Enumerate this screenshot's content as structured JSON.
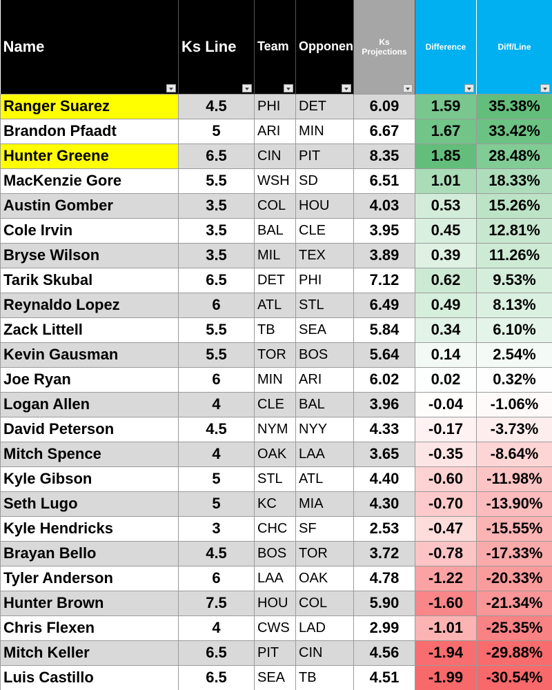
{
  "table": {
    "headers": [
      "Name",
      "Ks Line",
      "Team",
      "Opponent",
      "Ks Projections",
      "Difference",
      "Diff/Line"
    ],
    "rows": [
      [
        "Ranger Suarez",
        "4.5",
        "PHI",
        "DET",
        "6.09",
        "1.59",
        "35.38%"
      ],
      [
        "Brandon Pfaadt",
        "5",
        "ARI",
        "MIN",
        "6.67",
        "1.67",
        "33.42%"
      ],
      [
        "Hunter Greene",
        "6.5",
        "CIN",
        "PIT",
        "8.35",
        "1.85",
        "28.48%"
      ],
      [
        "MacKenzie Gore",
        "5.5",
        "WSH",
        "SD",
        "6.51",
        "1.01",
        "18.33%"
      ],
      [
        "Austin Gomber",
        "3.5",
        "COL",
        "HOU",
        "4.03",
        "0.53",
        "15.26%"
      ],
      [
        "Cole Irvin",
        "3.5",
        "BAL",
        "CLE",
        "3.95",
        "0.45",
        "12.81%"
      ],
      [
        "Bryse Wilson",
        "3.5",
        "MIL",
        "TEX",
        "3.89",
        "0.39",
        "11.26%"
      ],
      [
        "Tarik Skubal",
        "6.5",
        "DET",
        "PHI",
        "7.12",
        "0.62",
        "9.53%"
      ],
      [
        "Reynaldo Lopez",
        "6",
        "ATL",
        "STL",
        "6.49",
        "0.49",
        "8.13%"
      ],
      [
        "Zack Littell",
        "5.5",
        "TB",
        "SEA",
        "5.84",
        "0.34",
        "6.10%"
      ],
      [
        "Kevin Gausman",
        "5.5",
        "TOR",
        "BOS",
        "5.64",
        "0.14",
        "2.54%"
      ],
      [
        "Joe Ryan",
        "6",
        "MIN",
        "ARI",
        "6.02",
        "0.02",
        "0.32%"
      ],
      [
        "Logan Allen",
        "4",
        "CLE",
        "BAL",
        "3.96",
        "-0.04",
        "-1.06%"
      ],
      [
        "David Peterson",
        "4.5",
        "NYM",
        "NYY",
        "4.33",
        "-0.17",
        "-3.73%"
      ],
      [
        "Mitch Spence",
        "4",
        "OAK",
        "LAA",
        "3.65",
        "-0.35",
        "-8.64%"
      ],
      [
        "Kyle Gibson",
        "5",
        "STL",
        "ATL",
        "4.40",
        "-0.60",
        "-11.98%"
      ],
      [
        "Seth Lugo",
        "5",
        "KC",
        "MIA",
        "4.30",
        "-0.70",
        "-13.90%"
      ],
      [
        "Kyle Hendricks",
        "3",
        "CHC",
        "SF",
        "2.53",
        "-0.47",
        "-15.55%"
      ],
      [
        "Brayan Bello",
        "4.5",
        "BOS",
        "TOR",
        "3.72",
        "-0.78",
        "-17.33%"
      ],
      [
        "Tyler Anderson",
        "6",
        "LAA",
        "OAK",
        "4.78",
        "-1.22",
        "-20.33%"
      ],
      [
        "Hunter Brown",
        "7.5",
        "HOU",
        "COL",
        "5.90",
        "-1.60",
        "-21.34%"
      ],
      [
        "Chris Flexen",
        "4",
        "CWS",
        "LAD",
        "2.99",
        "-1.01",
        "-25.35%"
      ],
      [
        "Mitch Keller",
        "6.5",
        "PIT",
        "CIN",
        "4.56",
        "-1.94",
        "-29.88%"
      ],
      [
        "Luis Castillo",
        "6.5",
        "SEA",
        "TB",
        "4.51",
        "-1.99",
        "-30.54%"
      ]
    ]
  }
}
